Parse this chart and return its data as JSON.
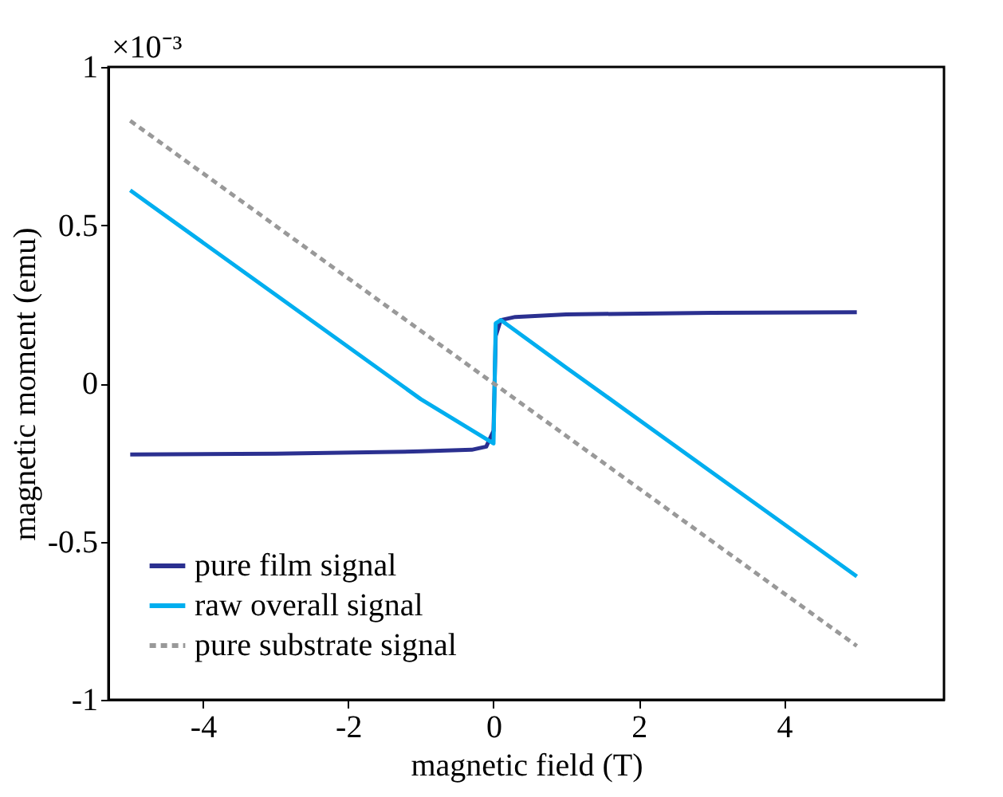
{
  "chart_data": {
    "type": "line",
    "xlabel": "magnetic field (T)",
    "ylabel": "magnetic moment (emu)",
    "xlim": [
      -5.3,
      6.2
    ],
    "xticks": [
      -4,
      -2,
      0,
      2,
      4
    ],
    "ylim": [
      -1,
      1
    ],
    "yticks": [
      -1,
      -0.5,
      0,
      0.5,
      1
    ],
    "annotations": [
      "×10⁻³"
    ],
    "legend": "bottom left",
    "grid": false,
    "marker": "none",
    "series": [
      {
        "name": "pure film signal",
        "color": "#2b3090",
        "line_style": "solid",
        "x": [
          -5,
          -3,
          -1,
          -0.3,
          -0.1,
          0,
          0.03,
          0.1,
          0.3,
          1,
          3,
          5
        ],
        "values": [
          -0.225,
          -0.222,
          -0.215,
          -0.21,
          -0.2,
          -0.15,
          0.15,
          0.2,
          0.21,
          0.218,
          0.223,
          0.225
        ]
      },
      {
        "name": "raw overall signal",
        "color": "#00aeef",
        "line_style": "solid",
        "x": [
          -5,
          -3,
          -1,
          0,
          0.03,
          0.1,
          1,
          3,
          5
        ],
        "values": [
          0.61,
          0.28,
          -0.05,
          -0.19,
          0.19,
          0.2,
          0.05,
          -0.28,
          -0.61
        ]
      },
      {
        "name": "pure substrate signal",
        "color": "#999999",
        "line_style": "dashed",
        "x": [
          -5,
          5
        ],
        "values": [
          0.83,
          -0.83
        ]
      }
    ]
  }
}
